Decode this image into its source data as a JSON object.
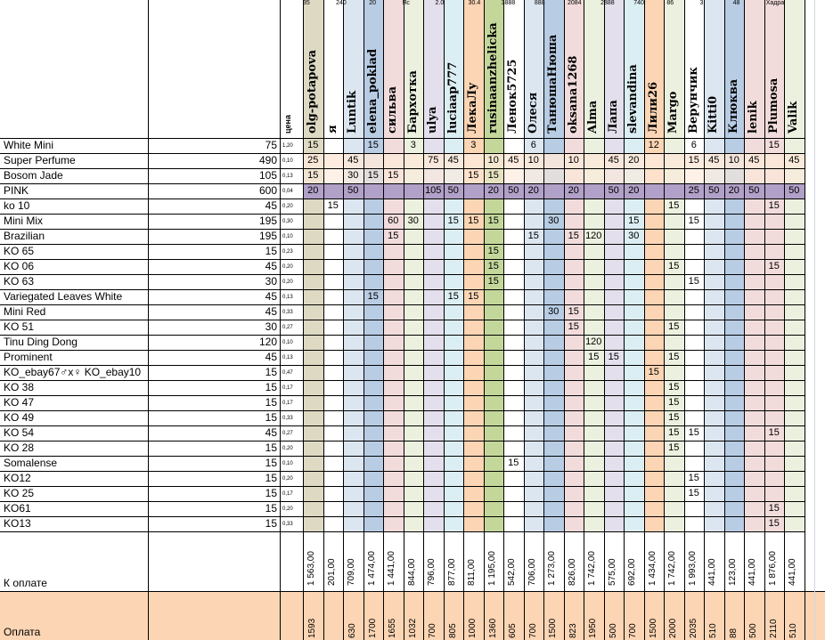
{
  "sheet": {
    "price_header": "цена",
    "to_pay_label": "К оплате",
    "payment_label": "Оплата",
    "top_fragments": [
      "35",
      "240",
      "20",
      "Яс",
      "2.0",
      "30.4 ",
      "3888",
      "888",
      "2084",
      "2888",
      "740",
      "86",
      "3",
      "48",
      "Хадра"
    ],
    "users": [
      {
        "name": "olg-potapova",
        "color": "#ddd9c3",
        "total": "1 563,00",
        "paid": "1593"
      },
      {
        "name": "я",
        "color": "#ffffff",
        "total": "201,00",
        "paid": ""
      },
      {
        "name": "Luntik",
        "color": "#dce6f1",
        "total": "709,00",
        "paid": "630"
      },
      {
        "name": "elena_poklad",
        "color": "#b8cce4",
        "total": "1 474,00",
        "paid": "1700"
      },
      {
        "name": "сильва",
        "color": "#f2dcdb",
        "total": "1 441,00",
        "paid": "1655"
      },
      {
        "name": "Бархотка",
        "color": "#ebf1de",
        "total": "844,00",
        "paid": "1032"
      },
      {
        "name": "ulya",
        "color": "#e4dfec",
        "total": "796,00",
        "paid": "700"
      },
      {
        "name": "luciaap777",
        "color": "#dbeef3",
        "total": "877,00",
        "paid": "805"
      },
      {
        "name": "ЛекаЛу",
        "color": "#fcd5b4",
        "total": "811,00",
        "paid": "1000"
      },
      {
        "name": "rusinaanzhelicka",
        "color": "#c4d79b",
        "total": "1 195,00",
        "paid": "1360"
      },
      {
        "name": "Ленок5725",
        "color": "#ffffff",
        "total": "542,00",
        "paid": "605"
      },
      {
        "name": "Олеся",
        "color": "#dce6f1",
        "total": "706,00",
        "paid": "700"
      },
      {
        "name": "ТанюшаНюша",
        "color": "#b8cce4",
        "total": "1 273,00",
        "paid": "1500"
      },
      {
        "name": "oksana1268",
        "color": "#f2dcdb",
        "total": "826,00",
        "paid": "823"
      },
      {
        "name": "Alma",
        "color": "#ebf1de",
        "total": "1 742,00",
        "paid": "1950"
      },
      {
        "name": "Лапа",
        "color": "#e4dfec",
        "total": "575,00",
        "paid": "500"
      },
      {
        "name": "slevandina",
        "color": "#dbeef3",
        "total": "692,00",
        "paid": "700"
      },
      {
        "name": "Лили26",
        "color": "#fcd5b4",
        "total": "1 434,00",
        "paid": "1500"
      },
      {
        "name": "Margo",
        "color": "#ebf1de",
        "total": "1 742,00",
        "paid": "2000"
      },
      {
        "name": "Верунчик",
        "color": "#ffffff",
        "total": "1 993,00",
        "paid": "2035"
      },
      {
        "name": "Kitti0",
        "color": "#dce6f1",
        "total": "441,00",
        "paid": "510"
      },
      {
        "name": "Клюква",
        "color": "#b8cce4",
        "total": "123,00",
        "paid": "88"
      },
      {
        "name": "lenik",
        "color": "#f2dcdb",
        "total": "441,00",
        "paid": "500"
      },
      {
        "name": "Plumosa",
        "color": "#f2dcdb",
        "total": "1 876,00",
        "paid": "2110"
      },
      {
        "name": "Valik",
        "color": "#ebf1de",
        "total": "441,00",
        "paid": "510"
      }
    ],
    "products": [
      {
        "name": "White Mini",
        "price": "75",
        "rate": "1,20",
        "q": [
          "15",
          "",
          "",
          "15",
          "",
          "3",
          "",
          "",
          "3",
          "",
          "",
          "6",
          "",
          "",
          "",
          "",
          "",
          "12",
          "",
          "6",
          "",
          "",
          "",
          "15",
          ""
        ]
      },
      {
        "name": "Super Perfume",
        "price": "490",
        "rate": "0,10",
        "q": [
          "25",
          "",
          "45",
          "",
          "",
          "",
          "75",
          "45",
          "",
          "10",
          "45",
          "10",
          "",
          "10",
          "",
          "45",
          "20",
          "",
          "",
          "15",
          "45",
          "10",
          "45",
          "",
          "45"
        ]
      },
      {
        "name": "Bosom Jade",
        "price": "105",
        "rate": "0,13",
        "q": [
          "15",
          "",
          "30",
          "15",
          "15",
          "",
          "",
          "",
          "15",
          "15",
          "",
          "",
          "",
          "",
          "",
          "",
          "",
          "",
          "",
          "",
          "",
          "",
          "",
          "",
          ""
        ]
      },
      {
        "name": "PINK",
        "price": "600",
        "rate": "0,04",
        "q": [
          "20",
          "",
          "50",
          "",
          "",
          "",
          "105",
          "50",
          "",
          "20",
          "50",
          "20",
          "",
          "20",
          "",
          "50",
          "20",
          "",
          "",
          "25",
          "50",
          "20",
          "50",
          "",
          "50"
        ]
      },
      {
        "name": "ko 10",
        "price": "45",
        "rate": "0,20",
        "q": [
          "",
          "15",
          "",
          "",
          "",
          "",
          "",
          "",
          "",
          "",
          "",
          "",
          "",
          "",
          "",
          "",
          "",
          "",
          "15",
          "",
          "",
          "",
          "",
          "15",
          ""
        ]
      },
      {
        "name": "Mini Mix",
        "price": "195",
        "rate": "0,30",
        "q": [
          "",
          "",
          "",
          "",
          "60",
          "30",
          "",
          "15",
          "15",
          "15",
          "",
          "",
          "30",
          "",
          "",
          "",
          "15",
          "",
          "",
          "15",
          "",
          "",
          "",
          "",
          ""
        ]
      },
      {
        "name": "Brazilian",
        "price": "195",
        "rate": "0,10",
        "q": [
          "",
          "",
          "",
          "",
          "15",
          "",
          "",
          "",
          "",
          "",
          "",
          "15",
          "",
          "15",
          "120",
          "",
          "30",
          "",
          "",
          "",
          "",
          "",
          "",
          "",
          ""
        ]
      },
      {
        "name": "KO 65",
        "price": "15",
        "rate": "0,23",
        "q": [
          "",
          "",
          "",
          "",
          "",
          "",
          "",
          "",
          "",
          "15",
          "",
          "",
          "",
          "",
          "",
          "",
          "",
          "",
          "",
          "",
          "",
          "",
          "",
          "",
          ""
        ]
      },
      {
        "name": "KO 06",
        "price": "45",
        "rate": "0,20",
        "q": [
          "",
          "",
          "",
          "",
          "",
          "",
          "",
          "",
          "",
          "15",
          "",
          "",
          "",
          "",
          "",
          "",
          "",
          "",
          "15",
          "",
          "",
          "",
          "",
          "15",
          ""
        ]
      },
      {
        "name": "KO 63",
        "price": "30",
        "rate": "0,20",
        "q": [
          "",
          "",
          "",
          "",
          "",
          "",
          "",
          "",
          "",
          "15",
          "",
          "",
          "",
          "",
          "",
          "",
          "",
          "",
          "",
          "15",
          "",
          "",
          "",
          "",
          ""
        ]
      },
      {
        "name": "Variegated Leaves White",
        "price": "45",
        "rate": "0,13",
        "q": [
          "",
          "",
          "",
          "15",
          "",
          "",
          "",
          "15",
          "15",
          "",
          "",
          "",
          "",
          "",
          "",
          "",
          "",
          "",
          "",
          "",
          "",
          "",
          "",
          "",
          ""
        ]
      },
      {
        "name": "Mini  Red",
        "price": "45",
        "rate": "0,33",
        "q": [
          "",
          "",
          "",
          "",
          "",
          "",
          "",
          "",
          "",
          "",
          "",
          "",
          "30",
          "15",
          "",
          "",
          "",
          "",
          "",
          "",
          "",
          "",
          "",
          "",
          ""
        ]
      },
      {
        "name": "KO 51",
        "price": "30",
        "rate": "0,27",
        "q": [
          "",
          "",
          "",
          "",
          "",
          "",
          "",
          "",
          "",
          "",
          "",
          "",
          "",
          "15",
          "",
          "",
          "",
          "",
          "15",
          "",
          "",
          "",
          "",
          "",
          ""
        ]
      },
      {
        "name": "Tinu Ding Dong",
        "price": "120",
        "rate": "0,10",
        "q": [
          "",
          "",
          "",
          "",
          "",
          "",
          "",
          "",
          "",
          "",
          "",
          "",
          "",
          "",
          "120",
          "",
          "",
          "",
          "",
          "",
          "",
          "",
          "",
          "",
          ""
        ]
      },
      {
        "name": "Prominent",
        "price": "45",
        "rate": "0,13",
        "q": [
          "",
          "",
          "",
          "",
          "",
          "",
          "",
          "",
          "",
          "",
          "",
          "",
          "",
          "",
          "15",
          "15",
          "",
          "",
          "15",
          "",
          "",
          "",
          "",
          "",
          ""
        ]
      },
      {
        "name": "KO_ebay67♂x♀ KO_ebay10",
        "price": "15",
        "rate": "0,47",
        "q": [
          "",
          "",
          "",
          "",
          "",
          "",
          "",
          "",
          "",
          "",
          "",
          "",
          "",
          "",
          "",
          "",
          "",
          "15",
          "",
          "",
          "",
          "",
          "",
          "",
          ""
        ]
      },
      {
        "name": "KO 38",
        "price": "15",
        "rate": "0,17",
        "q": [
          "",
          "",
          "",
          "",
          "",
          "",
          "",
          "",
          "",
          "",
          "",
          "",
          "",
          "",
          "",
          "",
          "",
          "",
          "15",
          "",
          "",
          "",
          "",
          "",
          ""
        ]
      },
      {
        "name": "KO 47",
        "price": "15",
        "rate": "0,17",
        "q": [
          "",
          "",
          "",
          "",
          "",
          "",
          "",
          "",
          "",
          "",
          "",
          "",
          "",
          "",
          "",
          "",
          "",
          "",
          "15",
          "",
          "",
          "",
          "",
          "",
          ""
        ]
      },
      {
        "name": "KO 49",
        "price": "15",
        "rate": "0,33",
        "q": [
          "",
          "",
          "",
          "",
          "",
          "",
          "",
          "",
          "",
          "",
          "",
          "",
          "",
          "",
          "",
          "",
          "",
          "",
          "15",
          "",
          "",
          "",
          "",
          "",
          ""
        ]
      },
      {
        "name": "KO 54",
        "price": "45",
        "rate": "0,27",
        "q": [
          "",
          "",
          "",
          "",
          "",
          "",
          "",
          "",
          "",
          "",
          "",
          "",
          "",
          "",
          "",
          "",
          "",
          "",
          "15",
          "15",
          "",
          "",
          "",
          "15",
          ""
        ]
      },
      {
        "name": "KO 28",
        "price": "15",
        "rate": "0,20",
        "q": [
          "",
          "",
          "",
          "",
          "",
          "",
          "",
          "",
          "",
          "",
          "",
          "",
          "",
          "",
          "",
          "",
          "",
          "",
          "15",
          "",
          "",
          "",
          "",
          "",
          ""
        ]
      },
      {
        "name": "Somalense",
        "price": "15",
        "rate": "0,10",
        "q": [
          "",
          "",
          "",
          "",
          "",
          "",
          "",
          "",
          "",
          "",
          "15",
          "",
          "",
          "",
          "",
          "",
          "",
          "",
          "",
          "",
          "",
          "",
          "",
          "",
          ""
        ]
      },
      {
        "name": "KO12",
        "price": "15",
        "rate": "0,20",
        "q": [
          "",
          "",
          "",
          "",
          "",
          "",
          "",
          "",
          "",
          "",
          "",
          "",
          "",
          "",
          "",
          "",
          "",
          "",
          "",
          "15",
          "",
          "",
          "",
          "",
          ""
        ]
      },
      {
        "name": "KO 25",
        "price": "15",
        "rate": "0,17",
        "q": [
          "",
          "",
          "",
          "",
          "",
          "",
          "",
          "",
          "",
          "",
          "",
          "",
          "",
          "",
          "",
          "",
          "",
          "",
          "",
          "15",
          "",
          "",
          "",
          "",
          ""
        ]
      },
      {
        "name": "KO61",
        "price": "15",
        "rate": "0,20",
        "q": [
          "",
          "",
          "",
          "",
          "",
          "",
          "",
          "",
          "",
          "",
          "",
          "",
          "",
          "",
          "",
          "",
          "",
          "",
          "",
          "",
          "",
          "",
          "",
          "15",
          ""
        ]
      },
      {
        "name": "KO13",
        "price": "15",
        "rate": "0,33",
        "q": [
          "",
          "",
          "",
          "",
          "",
          "",
          "",
          "",
          "",
          "",
          "",
          "",
          "",
          "",
          "",
          "",
          "",
          "",
          "",
          "",
          "",
          "",
          "",
          "15",
          ""
        ]
      }
    ]
  }
}
